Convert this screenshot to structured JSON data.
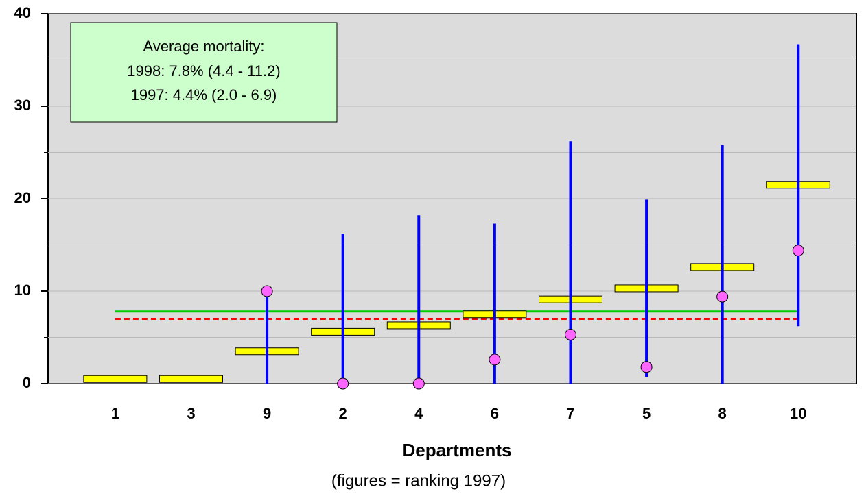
{
  "chart_data": {
    "type": "range",
    "xlabel": "Departments",
    "xlabel_note": "(figures = ranking 1997)",
    "annotation": [
      "Average mortality:",
      "1998: 7.8% (4.4 - 11.2)",
      "1997: 4.4% (2.0 - 6.9)"
    ],
    "categories": [
      "1",
      "3",
      "9",
      "2",
      "4",
      "6",
      "7",
      "5",
      "8",
      "10"
    ],
    "ylim": [
      0,
      40
    ],
    "yticks": [
      0,
      10,
      20,
      30,
      40
    ],
    "minor_yticks": [
      5,
      15,
      25,
      35
    ],
    "grid": true,
    "background": "#dcdcdc",
    "bars": {
      "color": "#ffff00",
      "values": [
        0.5,
        0.5,
        3.5,
        5.6,
        6.3,
        7.5,
        9.1,
        10.3,
        12.6,
        21.5
      ]
    },
    "points": {
      "color": "#ff66ff",
      "values": [
        null,
        null,
        10.0,
        0,
        0,
        2.6,
        5.3,
        1.8,
        9.4,
        14.4
      ]
    },
    "intervals": {
      "color": "#0000ff",
      "low": [
        null,
        null,
        0,
        0,
        0,
        0,
        0,
        0.7,
        0,
        6.2
      ],
      "high": [
        null,
        null,
        10.0,
        16.2,
        18.2,
        17.3,
        26.2,
        19.9,
        25.8,
        36.7
      ]
    },
    "reference_lines": [
      {
        "value": 7.8,
        "color": "#00cc00",
        "dashed": false
      },
      {
        "value": 7.0,
        "color": "#ff0000",
        "dashed": true
      }
    ]
  }
}
